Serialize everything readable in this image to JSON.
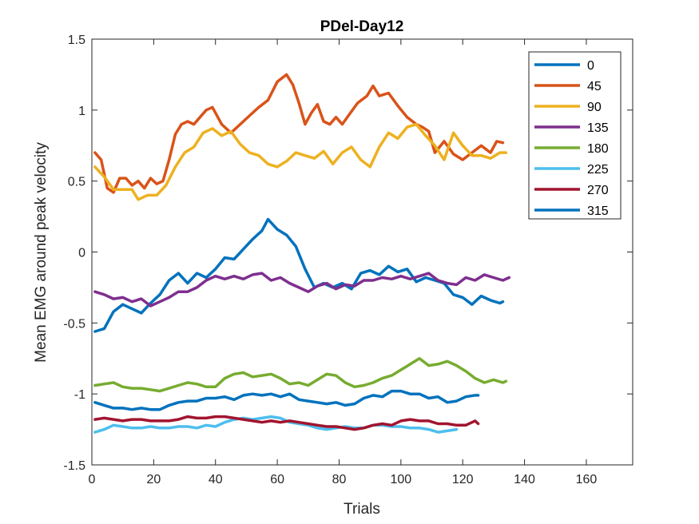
{
  "chart_data": {
    "type": "line",
    "title": "PDel-Day12",
    "xlabel": "Trials",
    "ylabel": "Mean EMG around peak velocity",
    "xlim": [
      0,
      175
    ],
    "ylim": [
      -1.5,
      1.5
    ],
    "xticks": [
      0,
      20,
      40,
      60,
      80,
      100,
      120,
      140,
      160
    ],
    "yticks": [
      -1.5,
      -1,
      -0.5,
      0,
      0.5,
      1,
      1.5
    ],
    "xtick_labels": [
      "0",
      "20",
      "40",
      "60",
      "80",
      "100",
      "120",
      "140",
      "160"
    ],
    "ytick_labels": [
      "-1.5",
      "-1",
      "-0.5",
      "0",
      "0.5",
      "1",
      "1.5"
    ],
    "grid": false,
    "legend_position": "top-right",
    "series": [
      {
        "name": "0",
        "color": "#0072BD",
        "x": [
          1,
          4,
          7,
          10,
          13,
          16,
          19,
          22,
          25,
          28,
          31,
          34,
          37,
          40,
          43,
          46,
          49,
          52,
          55,
          57,
          60,
          63,
          66,
          69,
          72,
          75,
          78,
          81,
          84,
          87,
          90,
          93,
          96,
          99,
          102,
          105,
          108,
          111,
          114,
          117,
          120,
          123,
          126,
          129,
          132,
          133
        ],
        "y": [
          -0.56,
          -0.54,
          -0.42,
          -0.37,
          -0.4,
          -0.43,
          -0.36,
          -0.3,
          -0.2,
          -0.15,
          -0.22,
          -0.15,
          -0.18,
          -0.12,
          -0.04,
          -0.05,
          0.02,
          0.09,
          0.15,
          0.23,
          0.16,
          0.12,
          0.04,
          -0.12,
          -0.25,
          -0.22,
          -0.25,
          -0.22,
          -0.26,
          -0.15,
          -0.13,
          -0.16,
          -0.1,
          -0.14,
          -0.12,
          -0.21,
          -0.18,
          -0.2,
          -0.22,
          -0.3,
          -0.32,
          -0.37,
          -0.31,
          -0.34,
          -0.36,
          -0.35
        ]
      },
      {
        "name": "45",
        "color": "#D95319",
        "x": [
          1,
          3,
          5,
          7,
          9,
          11,
          13,
          15,
          17,
          19,
          21,
          23,
          25,
          27,
          29,
          31,
          33,
          35,
          37,
          39,
          42,
          45,
          48,
          51,
          54,
          57,
          60,
          63,
          65,
          67,
          69,
          71,
          73,
          75,
          77,
          79,
          81,
          83,
          86,
          89,
          91,
          93,
          96,
          99,
          102,
          105,
          107,
          109,
          111,
          114,
          117,
          120,
          123,
          126,
          129,
          131,
          133
        ],
        "y": [
          0.7,
          0.65,
          0.45,
          0.42,
          0.52,
          0.52,
          0.47,
          0.5,
          0.45,
          0.52,
          0.48,
          0.5,
          0.65,
          0.83,
          0.9,
          0.92,
          0.9,
          0.95,
          1.0,
          1.02,
          0.9,
          0.84,
          0.9,
          0.96,
          1.02,
          1.07,
          1.2,
          1.25,
          1.18,
          1.05,
          0.9,
          0.98,
          1.04,
          0.92,
          0.9,
          0.95,
          0.9,
          0.96,
          1.05,
          1.1,
          1.17,
          1.1,
          1.12,
          1.03,
          0.95,
          0.9,
          0.88,
          0.85,
          0.7,
          0.78,
          0.69,
          0.65,
          0.7,
          0.75,
          0.7,
          0.78,
          0.77
        ]
      },
      {
        "name": "90",
        "color": "#EDB120",
        "x": [
          1,
          4,
          7,
          10,
          13,
          15,
          18,
          21,
          24,
          27,
          30,
          33,
          36,
          39,
          42,
          45,
          48,
          51,
          54,
          57,
          60,
          63,
          66,
          69,
          72,
          75,
          78,
          81,
          84,
          87,
          90,
          93,
          96,
          99,
          102,
          105,
          108,
          111,
          114,
          117,
          120,
          123,
          126,
          129,
          132,
          134
        ],
        "y": [
          0.6,
          0.53,
          0.44,
          0.44,
          0.44,
          0.37,
          0.4,
          0.4,
          0.47,
          0.6,
          0.7,
          0.74,
          0.84,
          0.87,
          0.82,
          0.85,
          0.76,
          0.7,
          0.68,
          0.62,
          0.6,
          0.64,
          0.7,
          0.68,
          0.66,
          0.71,
          0.62,
          0.7,
          0.74,
          0.65,
          0.6,
          0.74,
          0.84,
          0.8,
          0.88,
          0.9,
          0.82,
          0.75,
          0.65,
          0.84,
          0.75,
          0.68,
          0.68,
          0.66,
          0.7,
          0.7
        ]
      },
      {
        "name": "135",
        "color": "#7E2F8E",
        "x": [
          1,
          4,
          7,
          10,
          13,
          16,
          19,
          22,
          25,
          28,
          31,
          34,
          37,
          40,
          43,
          46,
          49,
          52,
          55,
          58,
          61,
          64,
          67,
          70,
          73,
          76,
          79,
          82,
          85,
          88,
          91,
          94,
          97,
          100,
          103,
          106,
          109,
          112,
          115,
          118,
          121,
          124,
          127,
          130,
          133,
          135
        ],
        "y": [
          -0.28,
          -0.3,
          -0.33,
          -0.32,
          -0.35,
          -0.33,
          -0.38,
          -0.35,
          -0.32,
          -0.28,
          -0.28,
          -0.25,
          -0.2,
          -0.17,
          -0.19,
          -0.17,
          -0.19,
          -0.16,
          -0.15,
          -0.2,
          -0.18,
          -0.22,
          -0.25,
          -0.28,
          -0.24,
          -0.22,
          -0.26,
          -0.23,
          -0.24,
          -0.2,
          -0.2,
          -0.18,
          -0.19,
          -0.17,
          -0.19,
          -0.17,
          -0.15,
          -0.2,
          -0.22,
          -0.23,
          -0.18,
          -0.2,
          -0.16,
          -0.18,
          -0.2,
          -0.18
        ]
      },
      {
        "name": "180",
        "color": "#77AC30",
        "x": [
          1,
          4,
          7,
          10,
          13,
          16,
          19,
          22,
          25,
          28,
          31,
          34,
          37,
          40,
          43,
          46,
          49,
          52,
          55,
          58,
          61,
          64,
          67,
          70,
          73,
          76,
          79,
          82,
          85,
          88,
          91,
          94,
          97,
          100,
          103,
          106,
          109,
          112,
          115,
          118,
          121,
          124,
          127,
          130,
          133,
          134
        ],
        "y": [
          -0.94,
          -0.93,
          -0.92,
          -0.95,
          -0.96,
          -0.96,
          -0.97,
          -0.98,
          -0.96,
          -0.94,
          -0.92,
          -0.93,
          -0.95,
          -0.95,
          -0.89,
          -0.86,
          -0.85,
          -0.88,
          -0.87,
          -0.86,
          -0.89,
          -0.93,
          -0.92,
          -0.94,
          -0.9,
          -0.86,
          -0.87,
          -0.92,
          -0.95,
          -0.94,
          -0.92,
          -0.89,
          -0.87,
          -0.83,
          -0.79,
          -0.75,
          -0.8,
          -0.79,
          -0.77,
          -0.8,
          -0.84,
          -0.89,
          -0.92,
          -0.9,
          -0.92,
          -0.91
        ]
      },
      {
        "name": "225",
        "color": "#4DBEEE",
        "x": [
          1,
          4,
          7,
          10,
          13,
          16,
          19,
          22,
          25,
          28,
          31,
          34,
          37,
          40,
          43,
          46,
          49,
          52,
          55,
          58,
          61,
          64,
          67,
          70,
          73,
          76,
          79,
          82,
          85,
          88,
          91,
          94,
          97,
          100,
          103,
          106,
          109,
          112,
          115,
          118
        ],
        "y": [
          -1.27,
          -1.25,
          -1.22,
          -1.23,
          -1.24,
          -1.24,
          -1.23,
          -1.24,
          -1.24,
          -1.23,
          -1.23,
          -1.24,
          -1.22,
          -1.23,
          -1.2,
          -1.18,
          -1.17,
          -1.18,
          -1.17,
          -1.16,
          -1.17,
          -1.2,
          -1.21,
          -1.22,
          -1.24,
          -1.25,
          -1.24,
          -1.23,
          -1.24,
          -1.24,
          -1.22,
          -1.22,
          -1.23,
          -1.23,
          -1.24,
          -1.24,
          -1.25,
          -1.27,
          -1.26,
          -1.25
        ]
      },
      {
        "name": "270",
        "color": "#A2142F",
        "x": [
          1,
          4,
          7,
          10,
          13,
          16,
          19,
          22,
          25,
          28,
          31,
          34,
          37,
          40,
          43,
          46,
          49,
          52,
          55,
          58,
          61,
          64,
          67,
          70,
          73,
          76,
          79,
          82,
          85,
          88,
          91,
          94,
          97,
          100,
          103,
          106,
          109,
          112,
          115,
          118,
          121,
          124,
          125
        ],
        "y": [
          -1.18,
          -1.17,
          -1.18,
          -1.19,
          -1.18,
          -1.18,
          -1.19,
          -1.19,
          -1.19,
          -1.18,
          -1.16,
          -1.17,
          -1.17,
          -1.16,
          -1.16,
          -1.17,
          -1.18,
          -1.19,
          -1.2,
          -1.19,
          -1.2,
          -1.19,
          -1.2,
          -1.21,
          -1.22,
          -1.23,
          -1.23,
          -1.24,
          -1.25,
          -1.24,
          -1.22,
          -1.21,
          -1.22,
          -1.19,
          -1.18,
          -1.19,
          -1.19,
          -1.21,
          -1.21,
          -1.22,
          -1.22,
          -1.19,
          -1.21
        ]
      },
      {
        "name": "315",
        "color": "#0072BD",
        "x": [
          1,
          4,
          7,
          10,
          13,
          16,
          19,
          22,
          25,
          28,
          31,
          34,
          37,
          40,
          43,
          46,
          49,
          52,
          55,
          58,
          61,
          64,
          67,
          70,
          73,
          76,
          79,
          82,
          85,
          88,
          91,
          94,
          97,
          100,
          103,
          106,
          109,
          112,
          115,
          118,
          121,
          124,
          125
        ],
        "y": [
          -1.06,
          -1.08,
          -1.1,
          -1.1,
          -1.11,
          -1.1,
          -1.11,
          -1.11,
          -1.08,
          -1.06,
          -1.05,
          -1.05,
          -1.03,
          -1.03,
          -1.02,
          -1.04,
          -1.01,
          -1.0,
          -1.01,
          -1.0,
          -1.02,
          -1.0,
          -1.04,
          -1.05,
          -1.06,
          -1.07,
          -1.06,
          -1.08,
          -1.07,
          -1.03,
          -1.01,
          -1.02,
          -0.98,
          -0.98,
          -1.0,
          -1.0,
          -1.03,
          -1.02,
          -1.06,
          -1.05,
          -1.02,
          -1.01,
          -1.01
        ]
      }
    ]
  }
}
